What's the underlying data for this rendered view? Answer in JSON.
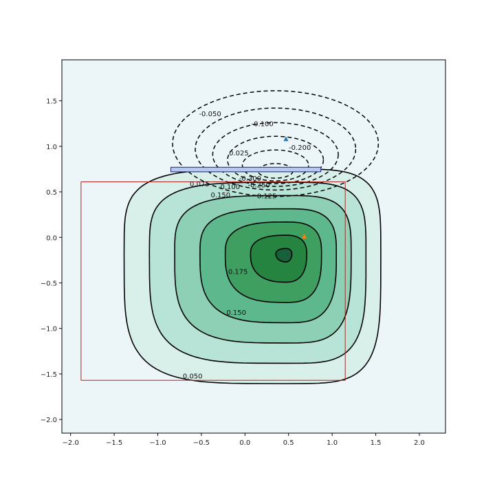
{
  "chart_data": {
    "type": "contour",
    "title": "",
    "xlabel": "",
    "ylabel": "",
    "xlim": [
      -2.1,
      2.3
    ],
    "ylim": [
      -2.15,
      1.95
    ],
    "x_ticks": [
      "−2.0",
      "−1.5",
      "−1.0",
      "−0.5",
      "0.0",
      "0.5",
      "1.0",
      "1.5",
      "2.0"
    ],
    "x_tick_values": [
      -2.0,
      -1.5,
      -1.0,
      -0.5,
      0.0,
      0.5,
      1.0,
      1.5,
      2.0
    ],
    "y_ticks": [
      "−2.0",
      "−1.5",
      "−1.0",
      "−0.5",
      "0.0",
      "0.5",
      "1.0",
      "1.5"
    ],
    "y_tick_values": [
      -2.0,
      -1.5,
      -1.0,
      -0.5,
      0.0,
      0.5,
      1.0,
      1.5
    ],
    "grid": false,
    "legend": "none",
    "background_color": "#ecf5f7",
    "positive_levels": [
      {
        "level": 0.05,
        "label": "0.050",
        "fill": "#d8efea",
        "label_at": [
          -0.6,
          -1.52
        ]
      },
      {
        "level": 0.075,
        "label": "0.075",
        "fill": "#b8e3d7",
        "label_at": [
          -0.52,
          0.59
        ]
      },
      {
        "level": 0.1,
        "label": "0.100",
        "fill": "#8dd0b5",
        "label_at": [
          -0.17,
          0.56
        ]
      },
      {
        "level": 0.125,
        "label": "0.125",
        "fill": "#5db98d",
        "label_at": [
          0.25,
          0.46
        ]
      },
      {
        "level": 0.15,
        "label": "0.150",
        "fill": "#3f9f60",
        "label_at": [
          -0.28,
          0.47
        ]
      },
      {
        "level": 0.175,
        "label": "0.175",
        "fill": "#258540",
        "label_at": [
          -0.08,
          -0.37
        ]
      }
    ],
    "positive_peak_fill": "#17613a",
    "negative_levels": [
      {
        "level": -0.05,
        "label": "-0.050",
        "label_at": [
          -0.4,
          1.36
        ]
      },
      {
        "level": -0.1,
        "label": "-0.100",
        "label_at": [
          0.2,
          1.25
        ]
      },
      {
        "level": -0.15,
        "label": "-0.150"
      },
      {
        "level": -0.2,
        "label": "-0.200",
        "label_at": [
          0.63,
          0.99
        ]
      },
      {
        "level": -0.25,
        "label": "-0.250",
        "label_at": [
          0.16,
          0.58
        ]
      },
      {
        "level": -0.3,
        "label": "-0.300",
        "label_at": [
          0.06,
          0.65
        ]
      }
    ],
    "extra_labels": [
      {
        "text": "0.025",
        "at": [
          -0.07,
          0.93
        ]
      },
      {
        "text": "0.150",
        "at": [
          -0.1,
          -0.82
        ]
      }
    ],
    "markers": [
      {
        "x": 0.47,
        "y": 1.08,
        "shape": "triangle",
        "color": "#1f77b4"
      },
      {
        "x": 0.68,
        "y": 0.01,
        "shape": "triangle",
        "color": "#ff7f0e"
      }
    ],
    "rectangles": [
      {
        "x0": -1.88,
        "y0": -1.57,
        "x1": 1.15,
        "y1": 0.61,
        "stroke": "#b22222",
        "fill": "none"
      },
      {
        "x0": -0.85,
        "y0": 0.72,
        "x1": 0.87,
        "y1": 0.77,
        "stroke": "#1a237e",
        "fill": "#b7c7ee"
      }
    ],
    "positive_lobe": {
      "center": [
        0.47,
        -0.18
      ],
      "outer_scale": [
        1.28,
        1.55
      ],
      "outer_shape": "squarish",
      "note_levels_rings": 6
    },
    "negative_lobe": {
      "center": [
        0.35,
        0.73
      ],
      "radii": [
        [
          1.18,
          0.58
        ],
        [
          0.92,
          0.45
        ],
        [
          0.72,
          0.35
        ],
        [
          0.55,
          0.26
        ],
        [
          0.38,
          0.17
        ],
        [
          0.2,
          0.08
        ]
      ]
    }
  }
}
